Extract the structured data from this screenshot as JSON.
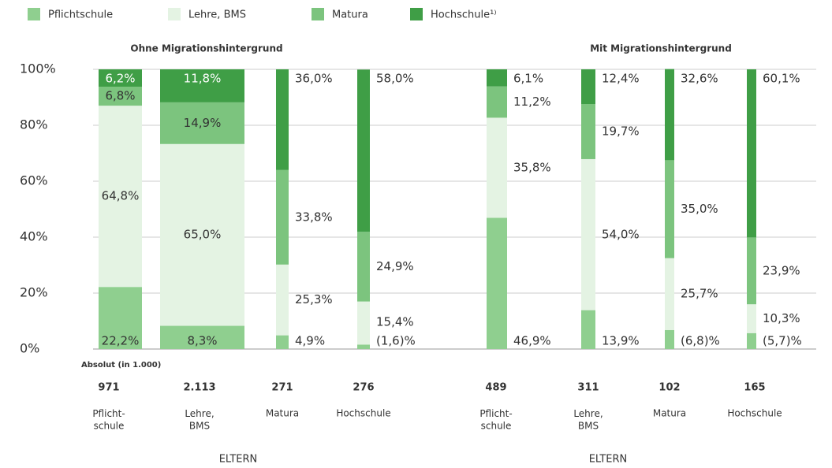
{
  "chart_data": {
    "type": "stacked_bar_100",
    "legend": "top-left",
    "grid": true,
    "series": [
      {
        "name": "Pflichtschule",
        "color": "#8fcf8f",
        "values": [
          22.2,
          8.3,
          4.9,
          1.6,
          46.9,
          13.9,
          6.8,
          5.7
        ],
        "value_labels": [
          "22,2%",
          "8,3%",
          "4,9%",
          "(1,6)%",
          "46,9%",
          "13,9%",
          "(6,8)%",
          "(5,7)%"
        ]
      },
      {
        "name": "Lehre, BMS",
        "color": "#e4f3e3",
        "values": [
          64.8,
          65.0,
          25.3,
          15.4,
          35.8,
          54.0,
          25.7,
          10.3
        ],
        "value_labels": [
          "64,8%",
          "65,0%",
          "25,3%",
          "15,4%",
          "35,8%",
          "54,0%",
          "25,7%",
          "10,3%"
        ]
      },
      {
        "name": "Matura",
        "color": "#7cc47e",
        "values": [
          6.8,
          14.9,
          33.8,
          24.9,
          11.2,
          19.7,
          35.0,
          23.9
        ],
        "value_labels": [
          "6,8%",
          "14,9%",
          "33,8%",
          "24,9%",
          "11,2%",
          "19,7%",
          "35,0%",
          "23,9%"
        ]
      },
      {
        "name": "Hochschule¹⁾",
        "color": "#3f9e46",
        "values": [
          6.2,
          11.8,
          36.0,
          58.0,
          6.1,
          12.4,
          32.6,
          60.1
        ],
        "value_labels": [
          "6,2%",
          "11,8%",
          "36,0%",
          "58,0%",
          "6,1%",
          "12,4%",
          "32,6%",
          "60,1%"
        ]
      }
    ],
    "categories": [
      "Pflicht-\nschule",
      "Lehre,\nBMS",
      "Matura",
      "Hochschule",
      "Pflicht-\nschule",
      "Lehre,\nBMS",
      "Matura",
      "Hochschule"
    ],
    "groups": [
      {
        "title": "Ohne Migrationshintergrund",
        "xlabel": "ELTERN"
      },
      {
        "title": "Mit Migrationshintergrund",
        "xlabel": "ELTERN"
      }
    ],
    "absolute_title": "Absolut (in 1.000)",
    "absolute_values": [
      "971",
      "2.113",
      "271",
      "276",
      "489",
      "311",
      "102",
      "165"
    ],
    "ylim": [
      0,
      100
    ],
    "yticks": [
      {
        "value": 0,
        "label": "0%"
      },
      {
        "value": 20,
        "label": "20%"
      },
      {
        "value": 40,
        "label": "40%"
      },
      {
        "value": 60,
        "label": "60%"
      },
      {
        "value": 80,
        "label": "80%"
      },
      {
        "value": 100,
        "label": "100%"
      }
    ]
  }
}
